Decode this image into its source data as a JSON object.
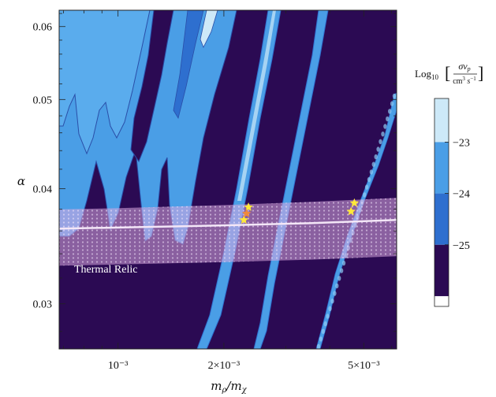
{
  "chart_data": {
    "type": "heatmap",
    "title": "",
    "xlabel": "m_ρ/m_χ",
    "ylabel": "α",
    "x_scale": "log",
    "xlim": [
      0.00068,
      0.0062
    ],
    "ylim": [
      0.0268,
      0.0625
    ],
    "x_ticks": [
      {
        "value": 0.001,
        "label": "10⁻³"
      },
      {
        "value": 0.002,
        "label": "2×10⁻³"
      },
      {
        "value": 0.005,
        "label": "5×10⁻³"
      }
    ],
    "y_ticks": [
      {
        "value": 0.03,
        "label": "0.03"
      },
      {
        "value": 0.04,
        "label": "0.04"
      },
      {
        "value": 0.05,
        "label": "0.05"
      },
      {
        "value": 0.06,
        "label": "0.06"
      }
    ],
    "colorbar": {
      "label": "Log₁₀[σv_p / cm³ s⁻¹]",
      "ticks": [
        {
          "value": -23,
          "label": "−23"
        },
        {
          "value": -24,
          "label": "−24"
        },
        {
          "value": -25,
          "label": "−25"
        }
      ],
      "levels": [
        {
          "from": -22,
          "to": -23,
          "color": "#cde9f8"
        },
        {
          "from": -23,
          "to": -24,
          "color": "#4a9ee6"
        },
        {
          "from": -24,
          "to": -25,
          "color": "#2e6fcf"
        },
        {
          "from": -25,
          "to": -26,
          "color": "#2b0a53"
        }
      ]
    },
    "band": {
      "label": "Thermal Relic",
      "center": [
        [
          0.00068,
          0.0362
        ],
        [
          0.001,
          0.0363
        ],
        [
          0.002,
          0.0365
        ],
        [
          0.0035,
          0.0367
        ],
        [
          0.0062,
          0.037
        ]
      ],
      "lower": [
        [
          0.00068,
          0.033
        ],
        [
          0.001,
          0.0331
        ],
        [
          0.002,
          0.0333
        ],
        [
          0.0035,
          0.0335
        ],
        [
          0.0062,
          0.0338
        ]
      ],
      "upper": [
        [
          0.00068,
          0.038
        ],
        [
          0.001,
          0.0381
        ],
        [
          0.002,
          0.0384
        ],
        [
          0.0035,
          0.0387
        ],
        [
          0.0062,
          0.0391
        ]
      ],
      "color": "#d8a8e0"
    },
    "markers": [
      {
        "x": 0.00228,
        "y": 0.037,
        "color": "#ffe83a"
      },
      {
        "x": 0.00235,
        "y": 0.0382,
        "color": "#ffe83a"
      },
      {
        "x": 0.00232,
        "y": 0.0376,
        "color": "#f08a3a"
      },
      {
        "x": 0.0046,
        "y": 0.0378,
        "color": "#ffe83a"
      },
      {
        "x": 0.0047,
        "y": 0.0386,
        "color": "#ffe83a"
      }
    ],
    "colors": {
      "background": "#2b0a53",
      "blue": "#4a9ee6",
      "mid": "#2e6fcf",
      "light": "#cde9f8",
      "band": "#d8a8e0"
    }
  }
}
